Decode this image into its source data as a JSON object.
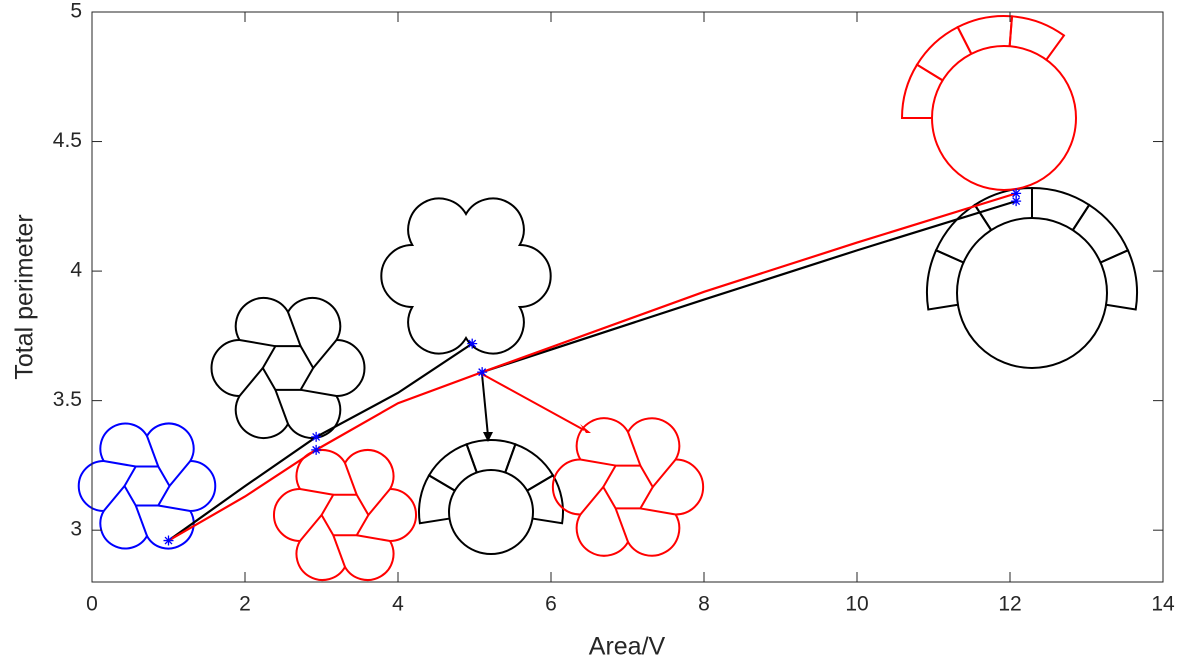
{
  "chart_data": {
    "type": "line",
    "x_label": "Area/V",
    "y_label": "Total perimeter",
    "xlim": [
      0,
      14
    ],
    "xticks": [
      0,
      2,
      4,
      6,
      8,
      10,
      12,
      14
    ],
    "ylim": [
      2.8,
      5
    ],
    "yticks": [
      3,
      3.5,
      4,
      4.5,
      5
    ],
    "grid": false,
    "series": [
      {
        "color": "#000000",
        "x": [
          1,
          2,
          2.93,
          4,
          4.97,
          null,
          5.1,
          8,
          10,
          12.08
        ],
        "values": [
          2.96,
          3.17,
          3.36,
          3.53,
          3.72,
          null,
          3.61,
          3.89,
          4.08,
          4.27
        ]
      },
      {
        "color": "#ff0000",
        "x": [
          1,
          2,
          2.93,
          4,
          5.1,
          8,
          10,
          12.08
        ],
        "values": [
          2.96,
          3.13,
          3.31,
          3.49,
          3.61,
          3.92,
          4.11,
          4.3
        ]
      },
      {
        "color": "#0000ff",
        "marker": "star",
        "x": [
          1,
          2.93,
          2.93,
          4.97,
          5.1,
          12.08,
          12.08
        ],
        "values": [
          2.96,
          3.36,
          3.31,
          3.72,
          3.61,
          4.3,
          4.27
        ]
      }
    ]
  }
}
